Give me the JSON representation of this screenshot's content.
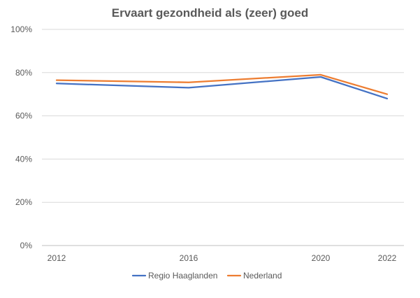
{
  "chart_data": {
    "type": "line",
    "title": "Ervaart gezondheid als (zeer) goed",
    "xlabel": "",
    "ylabel": "",
    "x": [
      2012,
      2016,
      2020,
      2022
    ],
    "x_tick_labels": [
      "2012",
      "2016",
      "2020",
      "2022"
    ],
    "ylim": [
      0,
      100
    ],
    "y_ticks": [
      0,
      20,
      40,
      60,
      80,
      100
    ],
    "y_tick_labels": [
      "0%",
      "20%",
      "40%",
      "60%",
      "80%",
      "100%"
    ],
    "grid": true,
    "legend_position": "bottom",
    "series": [
      {
        "name": "Regio Haaglanden",
        "color": "#4472C4",
        "values": [
          75,
          73,
          78,
          68
        ]
      },
      {
        "name": "Nederland",
        "color": "#ED7D31",
        "values": [
          76.5,
          75.5,
          79,
          70
        ]
      }
    ]
  }
}
